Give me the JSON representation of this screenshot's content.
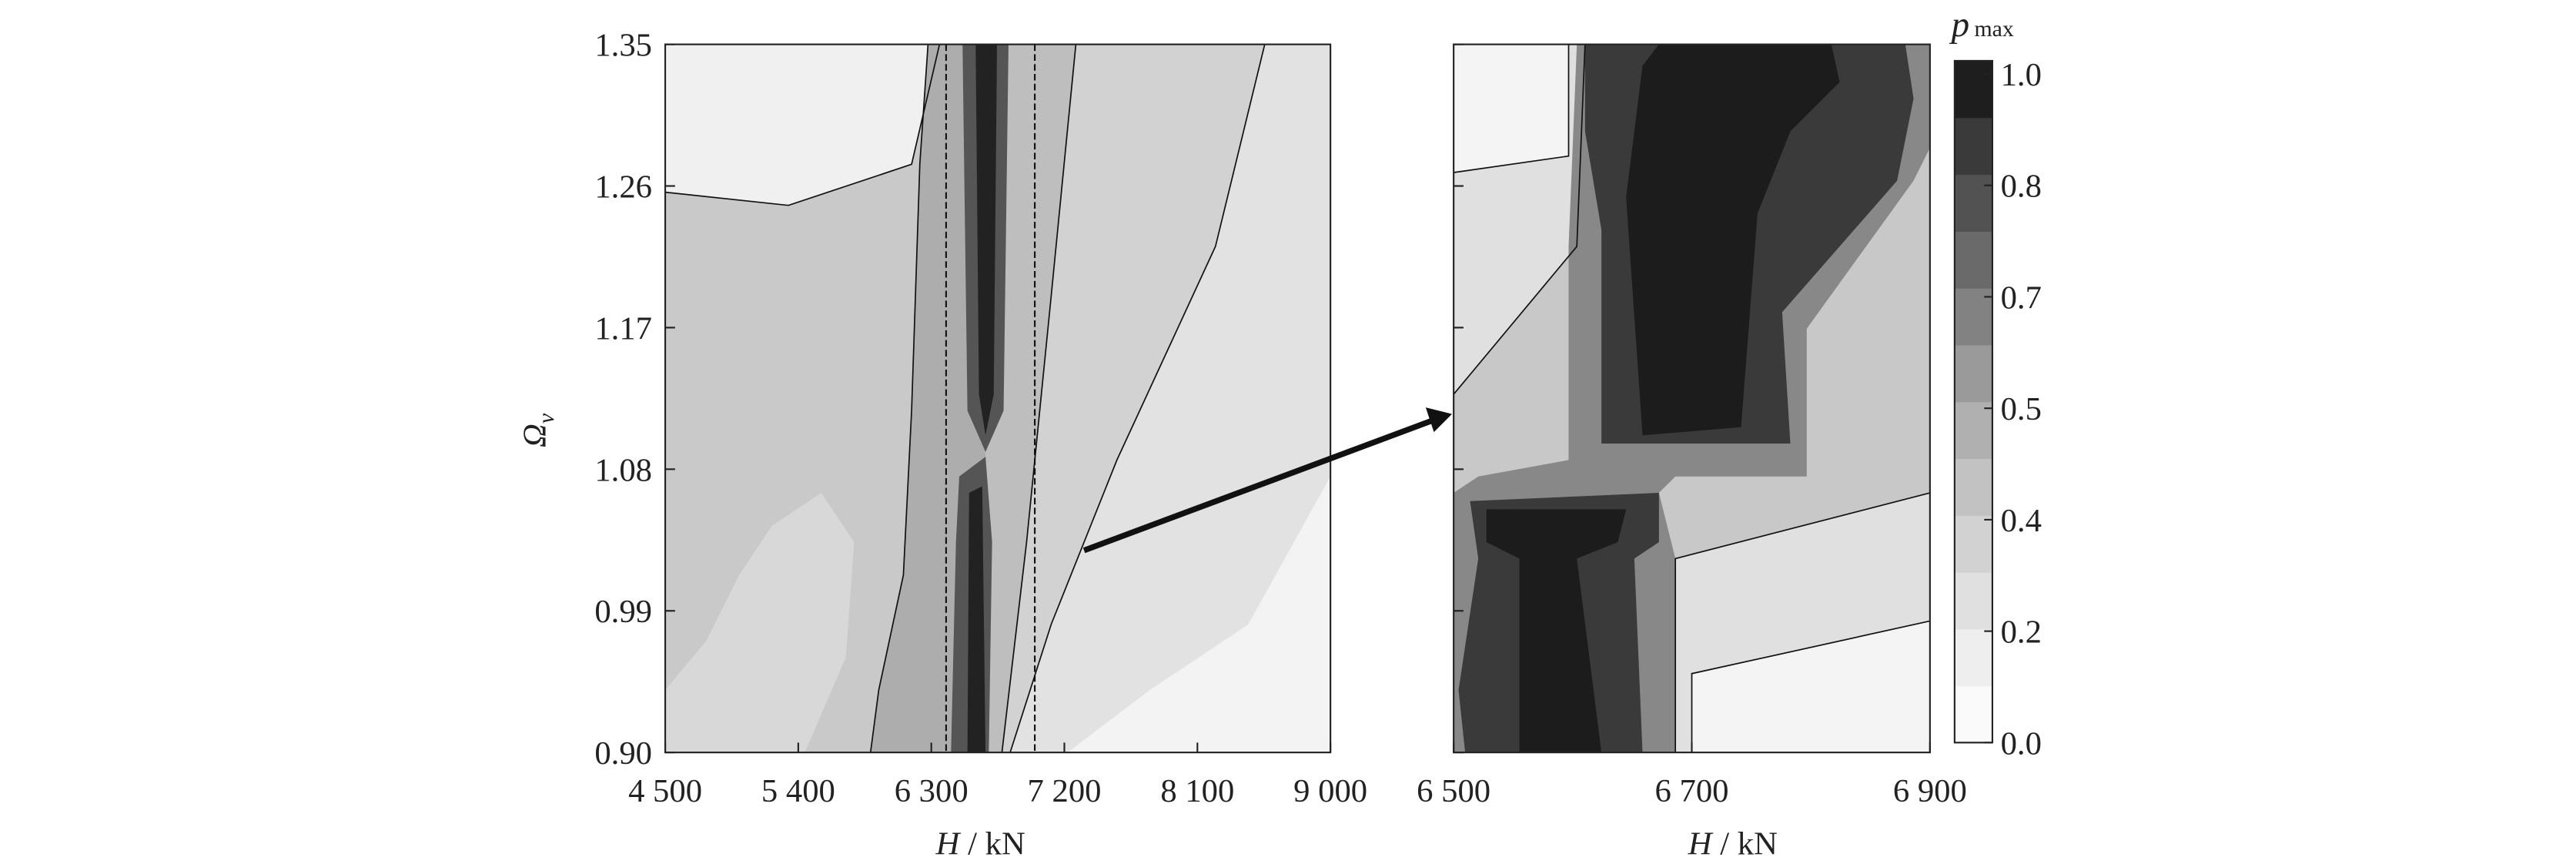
{
  "chart_data": [
    {
      "type": "contour",
      "xlabel": {
        "symbol": "H",
        "unit": "/ kN"
      },
      "ylabel": {
        "symbol": "Ω",
        "subscript": "v"
      },
      "xlim": [
        4500,
        9000
      ],
      "xticks": [
        {
          "value": 4500,
          "label": "4 500"
        },
        {
          "value": 5400,
          "label": "5 400"
        },
        {
          "value": 6300,
          "label": "6 300"
        },
        {
          "value": 7200,
          "label": "7 200"
        },
        {
          "value": 8100,
          "label": "8 100"
        },
        {
          "value": 9000,
          "label": "9 000"
        }
      ],
      "ylim": [
        0.9,
        1.35
      ],
      "yticks": [
        {
          "value": 0.9,
          "label": "0.90"
        },
        0.99,
        1.08,
        1.17,
        1.26,
        1.35
      ],
      "reference_lines_x": [
        6400,
        7000
      ]
    },
    {
      "type": "contour",
      "xlabel": {
        "symbol": "H",
        "unit": "/ kN"
      },
      "xlim": [
        6500,
        6900
      ],
      "xticks": [
        {
          "value": 6500,
          "label": "6 500"
        },
        {
          "value": 6700,
          "label": "6 700"
        },
        {
          "value": 6900,
          "label": "6 900"
        }
      ],
      "ylim": [
        0.9,
        1.35
      ]
    },
    {
      "type": "colorbar",
      "title": {
        "symbol": "p",
        "subscript": "max"
      },
      "ticks": [
        {
          "value": 0,
          "label": "0.0"
        },
        0.2,
        0.4,
        0.5,
        0.7,
        0.8,
        {
          "value": 1,
          "label": "1.0"
        }
      ],
      "colors": [
        "#fafafa",
        "#eeeeee",
        "#e0e0e0",
        "#d2d2d2",
        "#c2c2c2",
        "#b0b0b0",
        "#9a9a9a",
        "#828282",
        "#6a6a6a",
        "#525252",
        "#3a3a3a",
        "#1e1e1e"
      ]
    }
  ]
}
